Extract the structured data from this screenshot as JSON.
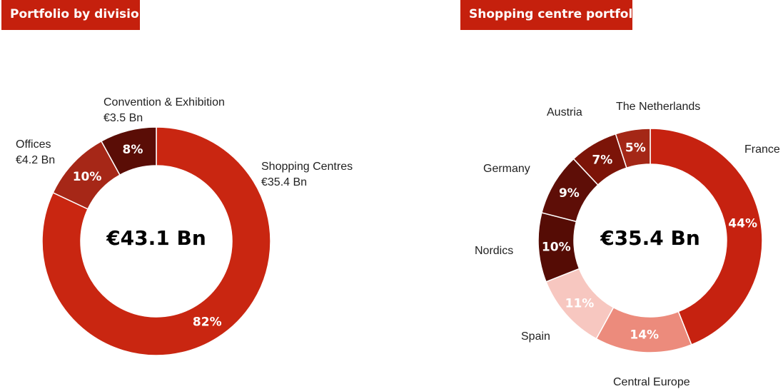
{
  "colors": {
    "title_bg": "#c5200d",
    "title_text": "#ffffff"
  },
  "chart_data": [
    {
      "type": "pie",
      "donut": true,
      "title": "Portfolio by division",
      "center_label": "€43.1 Bn",
      "slices": [
        {
          "label": "Shopping Centres",
          "amount": "€35.4 Bn",
          "value": 82,
          "pct_label": "82%",
          "color": "#c92611"
        },
        {
          "label": "Offices",
          "amount": "€4.2 Bn",
          "value": 10,
          "pct_label": "10%",
          "color": "#a62717"
        },
        {
          "label": "Convention & Exhibition",
          "amount": "€3.5 Bn",
          "value": 8,
          "pct_label": "8%",
          "color": "#5a0d06"
        }
      ]
    },
    {
      "type": "pie",
      "donut": true,
      "title": "Shopping centre portfolio",
      "center_label": "€35.4 Bn",
      "slices": [
        {
          "label": "France",
          "value": 44,
          "pct_label": "44%",
          "color": "#c62210"
        },
        {
          "label": "Central Europe",
          "value": 14,
          "pct_label": "14%",
          "color": "#ec8b7c"
        },
        {
          "label": "Spain",
          "value": 11,
          "pct_label": "11%",
          "color": "#f7c7c0"
        },
        {
          "label": "Nordics",
          "value": 10,
          "pct_label": "10%",
          "color": "#550c05"
        },
        {
          "label": "Germany",
          "value": 9,
          "pct_label": "9%",
          "color": "#5e0e07"
        },
        {
          "label": "Austria",
          "value": 7,
          "pct_label": "7%",
          "color": "#7c1408"
        },
        {
          "label": "The Netherlands",
          "value": 5,
          "pct_label": "5%",
          "color": "#a42716"
        }
      ]
    }
  ]
}
